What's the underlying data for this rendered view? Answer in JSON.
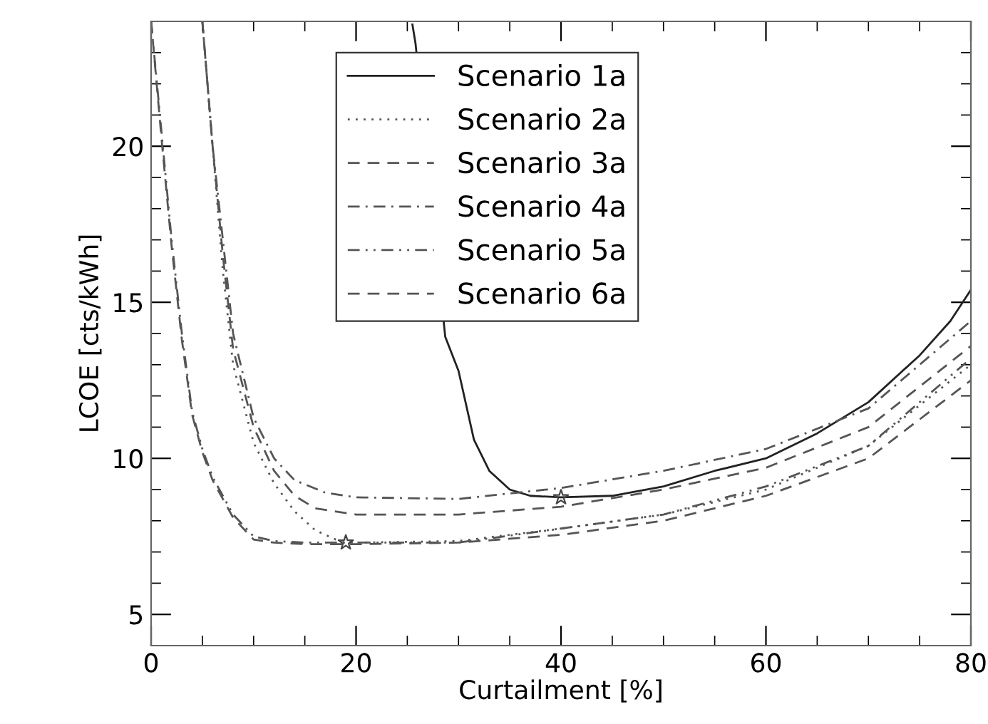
{
  "chart_data": {
    "type": "line",
    "xlabel": "Curtailment [%]",
    "ylabel": "LCOE [cts/kWh]",
    "xlim": [
      0,
      80
    ],
    "ylim": [
      4,
      24
    ],
    "xticks": [
      0,
      20,
      40,
      60,
      80
    ],
    "yticks": [
      5,
      10,
      15,
      20
    ],
    "grid": false,
    "legend": "top",
    "marker": "none",
    "series": [
      {
        "name": "Scenario 1a",
        "color": "#222222",
        "line_style": "solid",
        "x": [
          25.5,
          25.8,
          28.7,
          30,
          31.5,
          33,
          35,
          37,
          40,
          45,
          50,
          55,
          60,
          65,
          70,
          75,
          78,
          80
        ],
        "values": [
          23.9,
          23.3,
          13.9,
          12.8,
          10.6,
          9.6,
          9.0,
          8.8,
          8.75,
          8.8,
          9.1,
          9.6,
          10.0,
          10.8,
          11.8,
          13.3,
          14.4,
          15.4
        ]
      },
      {
        "name": "Scenario 2a",
        "color": "#555555",
        "line_style": "dotted",
        "x": [
          5,
          6,
          7,
          8,
          10,
          12,
          14,
          16,
          18,
          20,
          30,
          40,
          50,
          60,
          70,
          80
        ],
        "values": [
          24,
          20,
          16,
          13,
          10.5,
          9.2,
          8.3,
          7.7,
          7.4,
          7.3,
          7.35,
          7.75,
          8.2,
          9.0,
          10.4,
          13.0
        ]
      },
      {
        "name": "Scenario 3a",
        "color": "#555555",
        "line_style": "dashed",
        "x": [
          5,
          6,
          7,
          8,
          10,
          12,
          14,
          16,
          20,
          30,
          40,
          50,
          60,
          70,
          80
        ],
        "values": [
          24,
          20,
          16.5,
          13.5,
          11,
          9.6,
          8.8,
          8.4,
          8.2,
          8.2,
          8.45,
          9.0,
          9.7,
          11.0,
          13.6
        ]
      },
      {
        "name": "Scenario 4a",
        "color": "#555555",
        "line_style": "dashdot",
        "x": [
          5,
          6,
          7,
          8,
          10,
          12,
          14,
          17,
          20,
          30,
          40,
          50,
          60,
          70,
          80
        ],
        "values": [
          24,
          20,
          17,
          14,
          11.3,
          10,
          9.3,
          8.9,
          8.75,
          8.7,
          9.05,
          9.6,
          10.3,
          11.6,
          14.4
        ]
      },
      {
        "name": "Scenario 5a",
        "color": "#555555",
        "line_style": "dashdotdot",
        "x": [
          0,
          1,
          2,
          3,
          4,
          5,
          6,
          8,
          10,
          12,
          15,
          20,
          30,
          40,
          50,
          60,
          70,
          80
        ],
        "values": [
          24,
          20.5,
          17,
          14,
          11.5,
          10.3,
          9.4,
          8.2,
          7.5,
          7.35,
          7.3,
          7.3,
          7.3,
          7.75,
          8.2,
          9.1,
          10.4,
          13.2
        ]
      },
      {
        "name": "Scenario 6a",
        "color": "#555555",
        "line_style": "dashed",
        "x": [
          0,
          1,
          2,
          3,
          4,
          5,
          6,
          8,
          10,
          12,
          15,
          20,
          30,
          40,
          50,
          60,
          70,
          80
        ],
        "values": [
          24,
          20.3,
          16.8,
          13.8,
          11.4,
          10.2,
          9.3,
          8.1,
          7.4,
          7.3,
          7.25,
          7.25,
          7.3,
          7.55,
          8.0,
          8.8,
          10.0,
          12.5
        ]
      },
      {
        "type": "scatter",
        "color": "#444444",
        "marker": "star",
        "x": [
          19,
          40
        ],
        "values": [
          7.3,
          8.75
        ]
      }
    ]
  }
}
